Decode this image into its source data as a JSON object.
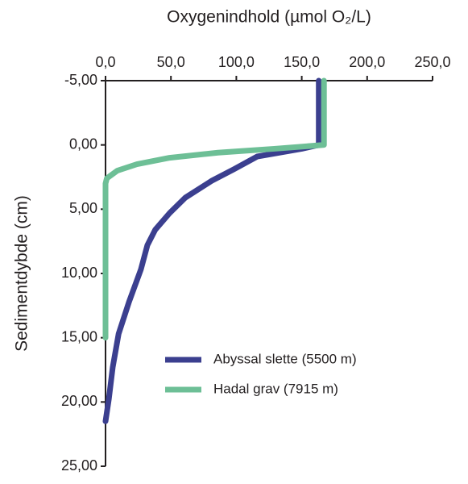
{
  "chart_data": {
    "type": "line",
    "title": "Oxygenindhold (µmol O₂/L)",
    "y_label": "Sedimentdybde (cm)",
    "xlim": [
      0,
      250
    ],
    "xticks": [
      {
        "value": 0,
        "label": "0,0"
      },
      {
        "value": 50,
        "label": "50,0"
      },
      {
        "value": 100,
        "label": "100,0"
      },
      {
        "value": 150,
        "label": "150,0"
      },
      {
        "value": 200,
        "label": "200,0"
      },
      {
        "value": 250,
        "label": "250,0"
      }
    ],
    "ylim": [
      -5,
      25
    ],
    "y_inverted": true,
    "yticks": [
      {
        "value": -5,
        "label": "-5,00"
      },
      {
        "value": 0,
        "label": "0,00"
      },
      {
        "value": 5,
        "label": "5,00"
      },
      {
        "value": 10,
        "label": "10,00"
      },
      {
        "value": 15,
        "label": "15,00"
      },
      {
        "value": 20,
        "label": "20,00"
      },
      {
        "value": 25,
        "label": "25,00"
      }
    ],
    "legend_position": "lower right",
    "series": [
      {
        "name": "Abyssal slette (5500 m)",
        "color": "#3b3f8f",
        "x": [
          163,
          163,
          150,
          116,
          98,
          81,
          61,
          49,
          38,
          32,
          27,
          18,
          10,
          5.5,
          2.5,
          0
        ],
        "y": [
          -5,
          0,
          0.3,
          0.9,
          1.9,
          2.8,
          4.1,
          5.3,
          6.6,
          7.8,
          9.7,
          12.2,
          14.7,
          17.3,
          19.8,
          21.5
        ]
      },
      {
        "name": "Hadal grav (7915 m)",
        "color": "#6dbf96",
        "x": [
          167,
          167,
          129,
          86,
          49,
          24,
          9,
          1,
          0,
          0
        ],
        "y": [
          -5,
          0,
          0.3,
          0.6,
          1.0,
          1.5,
          2.0,
          2.6,
          3,
          15
        ]
      }
    ]
  }
}
